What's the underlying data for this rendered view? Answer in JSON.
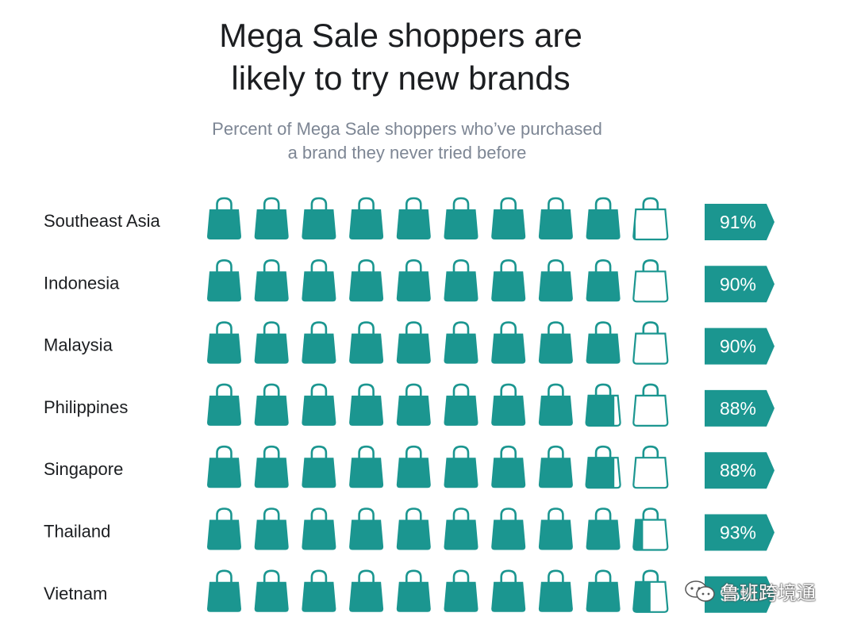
{
  "title_lines": [
    "Mega Sale shoppers are",
    "likely to try new brands"
  ],
  "subtitle_lines": [
    "Percent of Mega Sale shoppers who’ve purchased",
    "a brand they never tried before"
  ],
  "colors": {
    "teal": "#1b9690",
    "outline": "#1b9690",
    "title": "#1c1e21",
    "subtitle": "#7d8694"
  },
  "chart_data": {
    "type": "bar",
    "icons_per_row": 10,
    "categories": [
      "Southeast Asia",
      "Indonesia",
      "Malaysia",
      "Philippines",
      "Singapore",
      "Thailand",
      "Vietnam"
    ],
    "values": [
      91,
      90,
      90,
      88,
      88,
      93,
      95
    ],
    "labels": [
      "91%",
      "90%",
      "90%",
      "88%",
      "88%",
      "93%",
      "95%"
    ],
    "unit": "%"
  },
  "watermark": {
    "text": "鲁班跨境通"
  }
}
